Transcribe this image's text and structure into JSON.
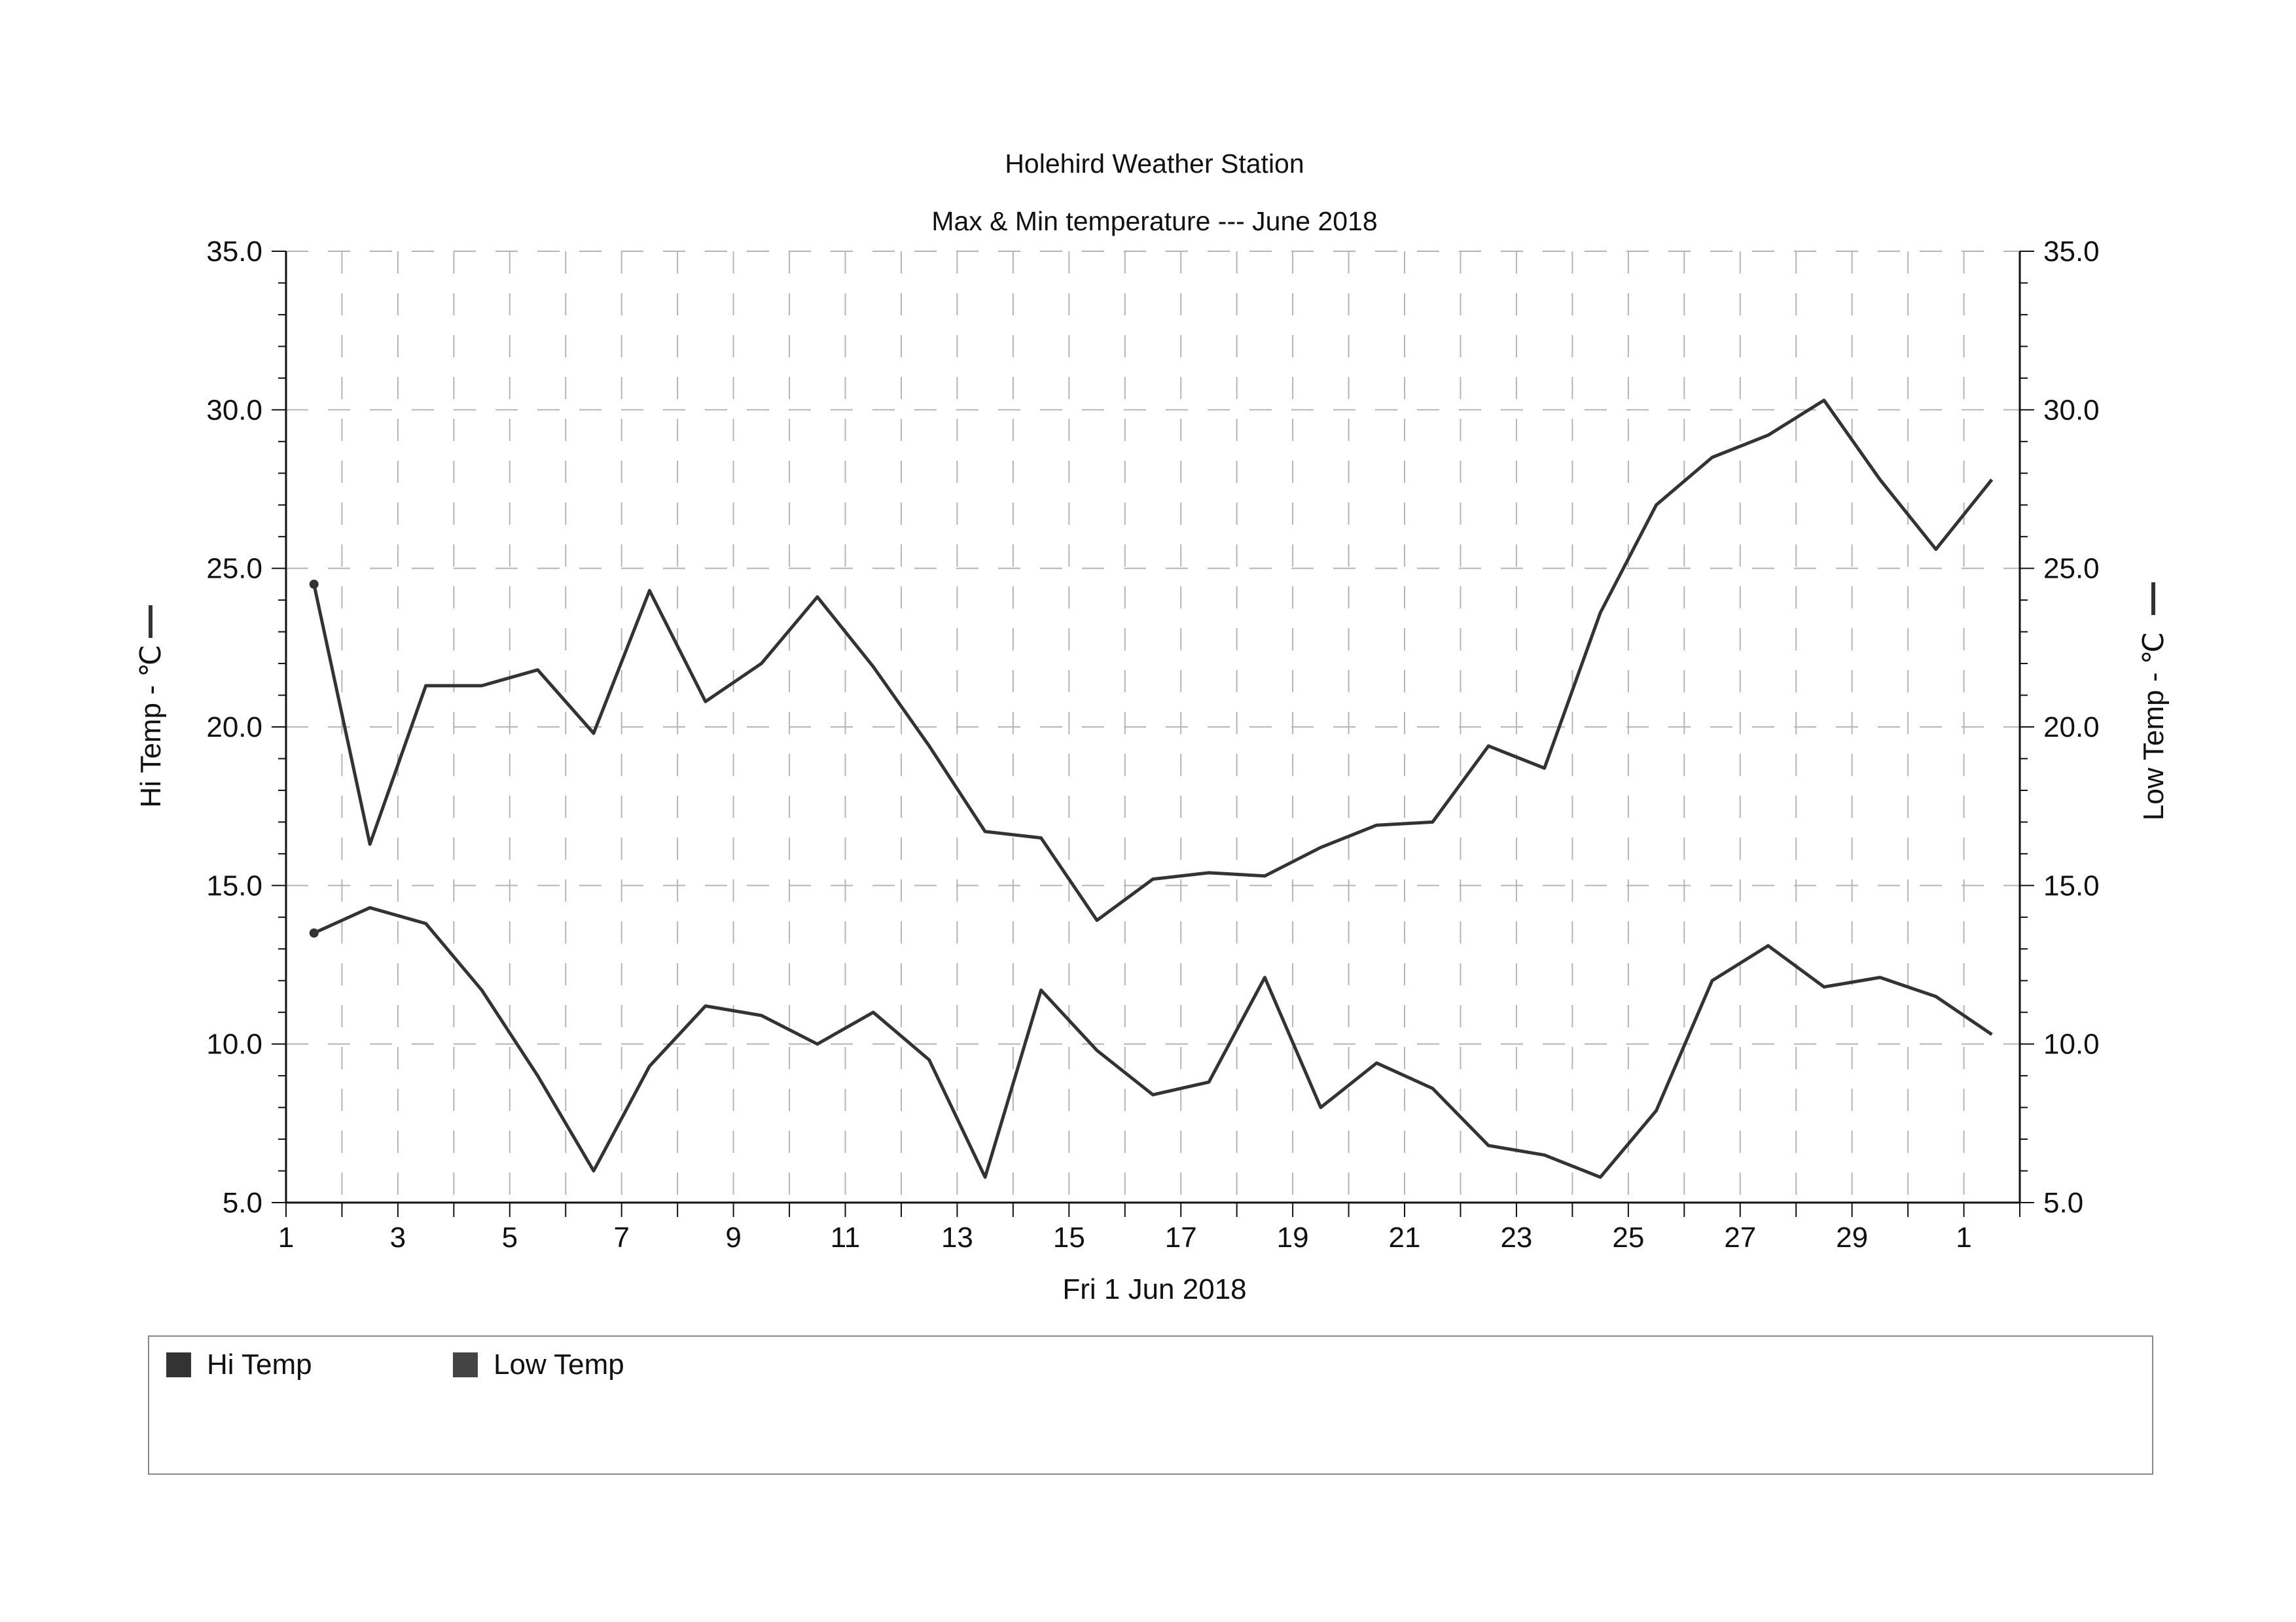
{
  "chart_data": {
    "type": "line",
    "title": "Holehird Weather Station",
    "subtitle": "Max & Min temperature --- June 2018",
    "xlabel": "Fri 1 Jun 2018",
    "ylabel_left": "Hi Temp - ℃",
    "ylabel_right": "Low Temp - ℃",
    "ylim": [
      5.0,
      35.0
    ],
    "y_ticks": [
      "5.0",
      "10.0",
      "15.0",
      "20.0",
      "25.0",
      "30.0",
      "35.0"
    ],
    "x_tick_labels": [
      "1",
      "3",
      "5",
      "7",
      "9",
      "11",
      "13",
      "15",
      "17",
      "19",
      "21",
      "23",
      "25",
      "27",
      "29",
      "1"
    ],
    "x": [
      "Jun 1",
      "Jun 2",
      "Jun 3",
      "Jun 4",
      "Jun 5",
      "Jun 6",
      "Jun 7",
      "Jun 8",
      "Jun 9",
      "Jun 10",
      "Jun 11",
      "Jun 12",
      "Jun 13",
      "Jun 14",
      "Jun 15",
      "Jun 16",
      "Jun 17",
      "Jun 18",
      "Jun 19",
      "Jun 20",
      "Jun 21",
      "Jun 22",
      "Jun 23",
      "Jun 24",
      "Jun 25",
      "Jun 26",
      "Jun 27",
      "Jun 28",
      "Jun 29",
      "Jun 30",
      "Jul 1"
    ],
    "grid": true,
    "legend_position": "bottom",
    "series": [
      {
        "name": "Hi Temp",
        "color": "#333333",
        "values": [
          24.5,
          16.3,
          21.3,
          21.3,
          21.8,
          19.8,
          24.3,
          20.8,
          22.0,
          24.1,
          21.9,
          19.4,
          16.7,
          16.5,
          13.9,
          15.2,
          15.4,
          15.3,
          16.2,
          16.9,
          17.0,
          19.4,
          18.7,
          23.6,
          27.0,
          28.5,
          29.2,
          30.3,
          27.8,
          25.6,
          27.8
        ]
      },
      {
        "name": "Low Temp",
        "color": "#444444",
        "values": [
          13.5,
          14.3,
          13.8,
          11.7,
          9.0,
          6.0,
          9.3,
          11.2,
          10.9,
          10.0,
          11.0,
          9.5,
          5.8,
          11.7,
          9.8,
          8.4,
          8.8,
          12.1,
          8.0,
          9.4,
          8.6,
          6.8,
          6.5,
          5.8,
          7.9,
          12.0,
          13.1,
          11.8,
          12.1,
          11.5,
          10.3
        ]
      }
    ]
  }
}
